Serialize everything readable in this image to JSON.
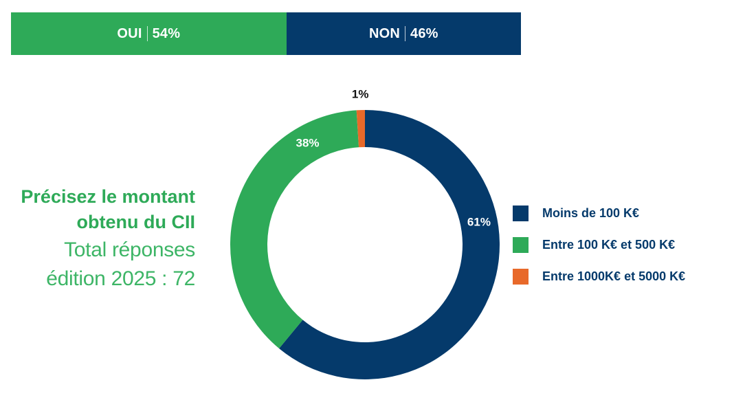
{
  "colors": {
    "navy": "#053a6b",
    "green": "#2eaa58",
    "orange": "#e8692a",
    "title_green": "#2eaa58",
    "sub_green": "#3db566",
    "dark_text": "#111111"
  },
  "split_bar": {
    "segments": [
      {
        "label": "OUI",
        "percent_text": "54%",
        "share": 0.54,
        "color": "#2eaa58"
      },
      {
        "label": "NON",
        "percent_text": "46%",
        "share": 0.46,
        "color": "#053a6b"
      }
    ]
  },
  "question": {
    "title_line1": "Précisez le montant",
    "title_line2": "obtenu du CII",
    "subtitle_line1": "Total réponses",
    "subtitle_line2": "édition 2025 : 72"
  },
  "chart_data": {
    "type": "pie",
    "donut": true,
    "start_angle": "top, clockwise",
    "categories": [
      "Moins de 100 K€",
      "Entre 100 K€ et 500 K€",
      "Entre 1000K€ et 5000 K€"
    ],
    "values": [
      61,
      38,
      1
    ],
    "labels": [
      "61%",
      "38%",
      "1%"
    ],
    "colors": [
      "#053a6b",
      "#2eaa58",
      "#e8692a"
    ],
    "legend_position": "right"
  }
}
